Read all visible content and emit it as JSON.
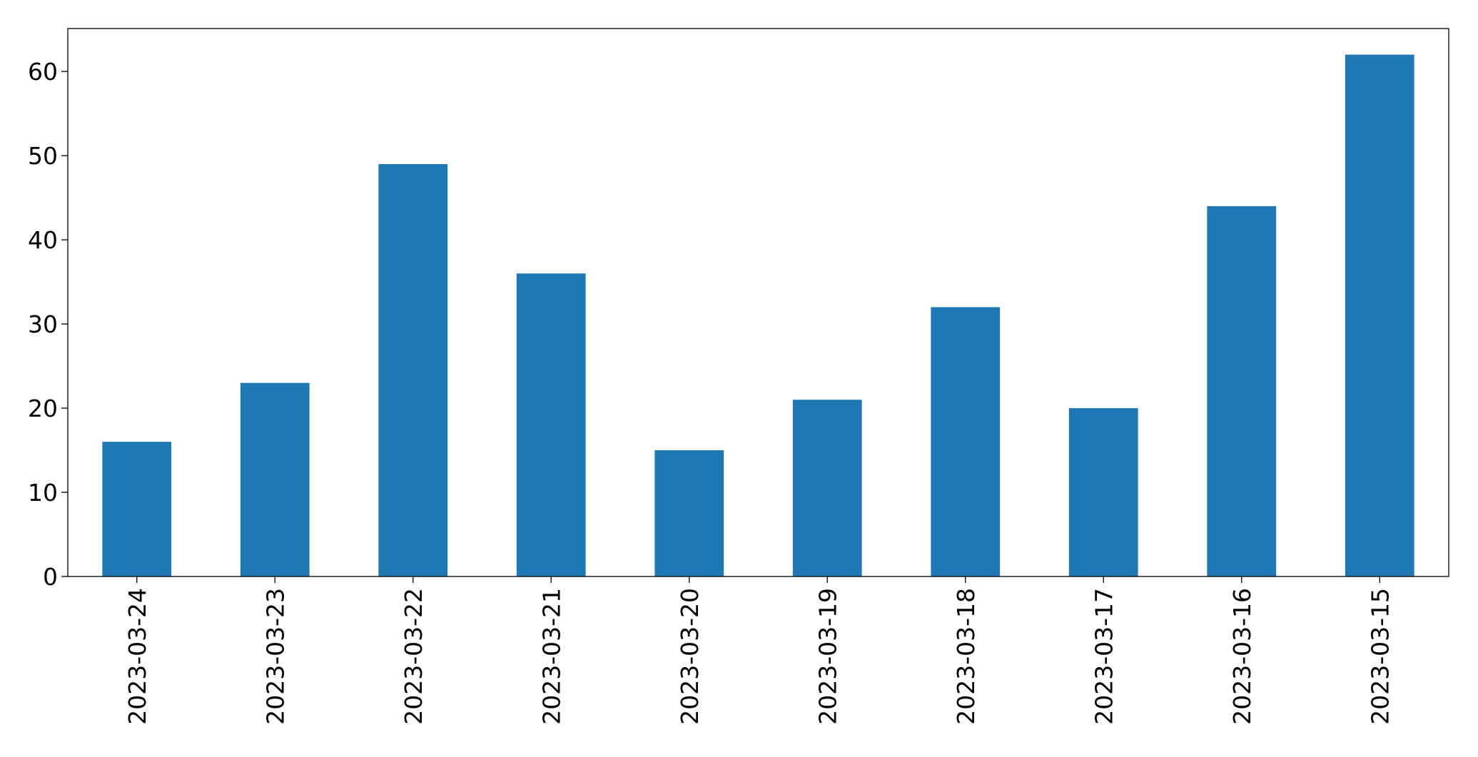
{
  "chart_data": {
    "type": "bar",
    "categories": [
      "2023-03-24",
      "2023-03-23",
      "2023-03-22",
      "2023-03-21",
      "2023-03-20",
      "2023-03-19",
      "2023-03-18",
      "2023-03-17",
      "2023-03-16",
      "2023-03-15"
    ],
    "values": [
      16,
      23,
      49,
      36,
      15,
      21,
      32,
      20,
      44,
      62
    ],
    "color": "#1f77b4",
    "ylim": [
      0,
      65.1
    ],
    "yticks": [
      0,
      10,
      20,
      30,
      40,
      50,
      60
    ],
    "grid": false
  }
}
